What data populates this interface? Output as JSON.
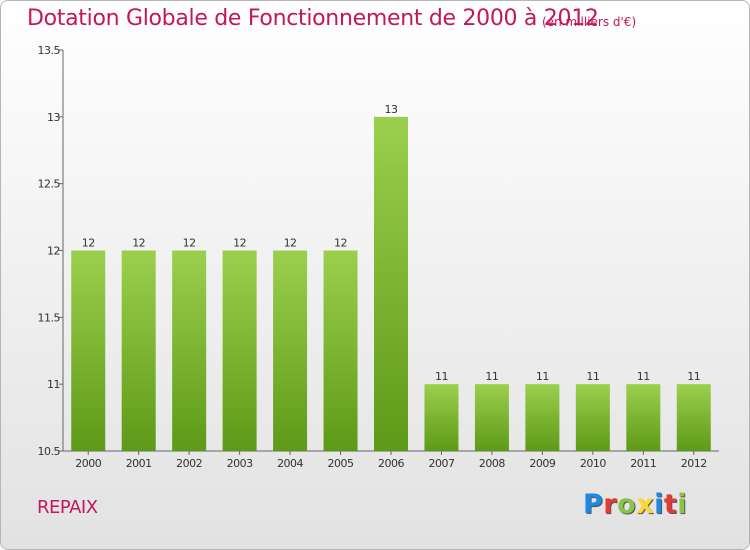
{
  "header": {
    "title": "Dotation Globale de Fonctionnement de 2000 à 2012",
    "unit": "(en milliers d'€)"
  },
  "footer": {
    "commune": "REPAIX",
    "logo": {
      "letters": [
        "P",
        "r",
        "o",
        "x",
        "i",
        "t",
        "i"
      ],
      "colors": [
        "#1e88e5",
        "#e53935",
        "#8bc34a",
        "#fdd835",
        "#1e88e5",
        "#e53935",
        "#8bc34a"
      ]
    }
  },
  "chart_data": {
    "type": "bar",
    "categories": [
      "2000",
      "2001",
      "2002",
      "2003",
      "2004",
      "2005",
      "2006",
      "2007",
      "2008",
      "2009",
      "2010",
      "2011",
      "2012"
    ],
    "values": [
      12,
      12,
      12,
      12,
      12,
      12,
      13,
      11,
      11,
      11,
      11,
      11,
      11
    ],
    "data_labels": [
      "12",
      "12",
      "12",
      "12",
      "12",
      "12",
      "13",
      "11",
      "11",
      "11",
      "11",
      "11",
      "11"
    ],
    "yticks": [
      "10.5",
      "11",
      "11.5",
      "12",
      "12.5",
      "13",
      "13.5"
    ],
    "ylim": [
      10.5,
      13.5
    ],
    "title": "Dotation Globale de Fonctionnement de 2000 à 2012",
    "xlabel": "",
    "ylabel": "",
    "grid": false,
    "bar_color_top": "#9ccf4e",
    "bar_color_bottom": "#5d9a17"
  }
}
